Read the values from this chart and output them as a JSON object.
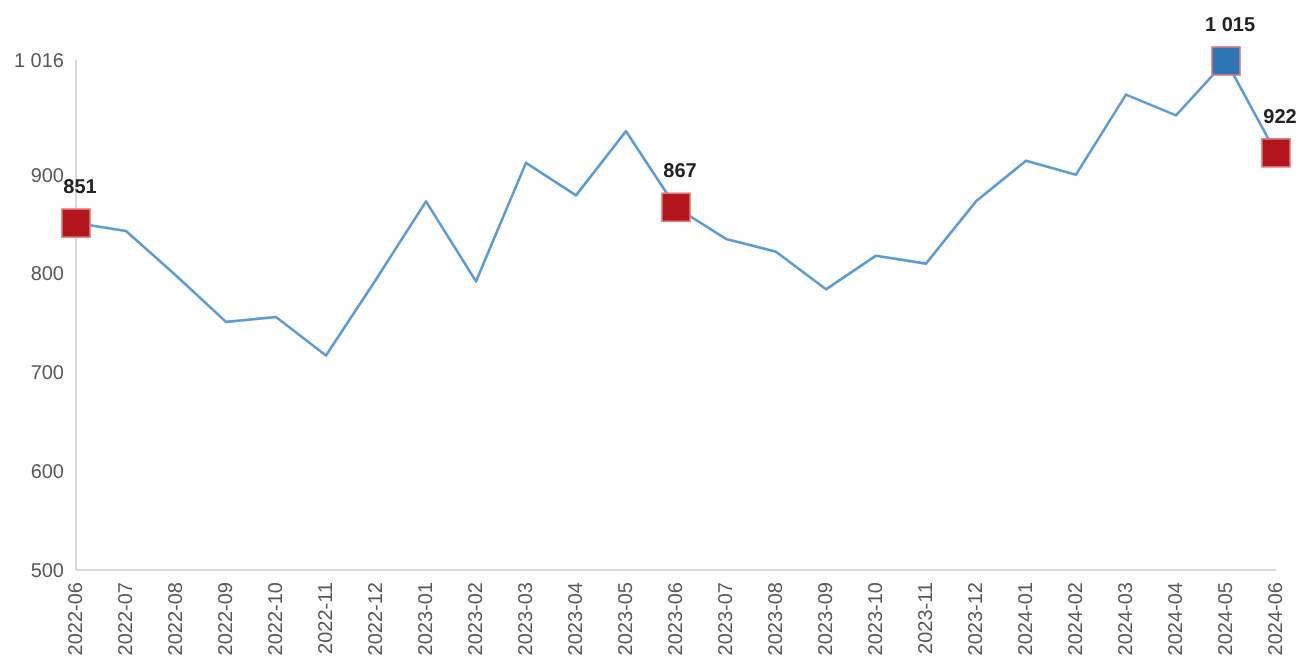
{
  "chart_data": {
    "type": "line",
    "categories": [
      "2022-06",
      "2022-07",
      "2022-08",
      "2022-09",
      "2022-10",
      "2022-11",
      "2022-12",
      "2023-01",
      "2023-02",
      "2023-03",
      "2023-04",
      "2023-05",
      "2023-06",
      "2023-07",
      "2023-08",
      "2023-09",
      "2023-10",
      "2023-11",
      "2023-12",
      "2024-01",
      "2024-02",
      "2024-03",
      "2024-04",
      "2024-05",
      "2024-06"
    ],
    "ylim": [
      500,
      1016
    ],
    "yticks": [
      500,
      600,
      700,
      800,
      900,
      {
        "value": 1016,
        "label": "1 016"
      }
    ],
    "series": [
      {
        "color": "#5b9bd5",
        "marker": "none",
        "values": [
          851,
          843,
          798,
          751,
          756,
          717,
          794,
          873,
          792,
          912,
          879,
          944,
          867,
          835,
          822,
          784,
          818,
          810,
          873,
          914,
          900,
          981,
          960,
          1015,
          922
        ]
      },
      {
        "type": "scatter",
        "marker": "square",
        "values": [
          851,
          null,
          null,
          null,
          null,
          null,
          null,
          null,
          null,
          null,
          null,
          null,
          867,
          null,
          null,
          null,
          null,
          null,
          null,
          null,
          null,
          null,
          null,
          1015,
          922
        ],
        "colors": [
          "#b2151b",
          null,
          null,
          null,
          null,
          null,
          null,
          null,
          null,
          null,
          null,
          null,
          "#b2151b",
          null,
          null,
          null,
          null,
          null,
          null,
          null,
          null,
          null,
          null,
          "#2e75b6",
          "#b2151b"
        ],
        "value_labels": [
          "851",
          null,
          null,
          null,
          null,
          null,
          null,
          null,
          null,
          null,
          null,
          null,
          "867",
          null,
          null,
          null,
          null,
          null,
          null,
          null,
          null,
          null,
          null,
          "1 015",
          "922"
        ]
      }
    ]
  }
}
